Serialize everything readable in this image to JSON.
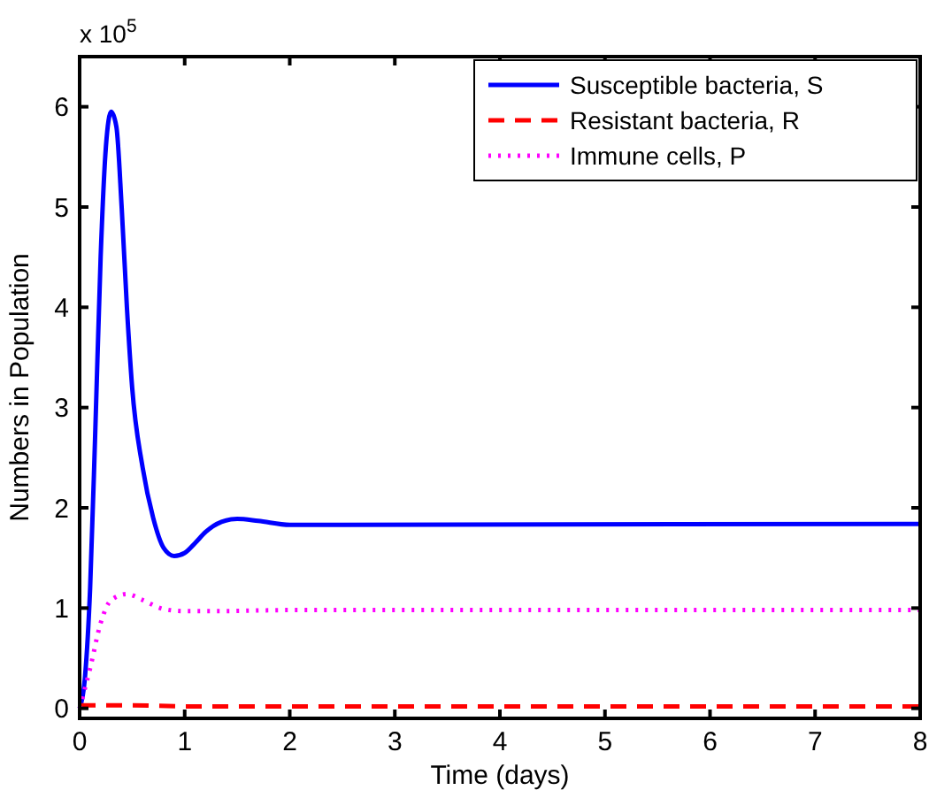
{
  "chart_data": {
    "type": "line",
    "xlabel": "Time (days)",
    "ylabel": "Numbers in Population",
    "annotations": [
      "x 10$^{5}$"
    ],
    "xlim": [
      0,
      8
    ],
    "xticks": [
      0,
      1,
      2,
      3,
      4,
      5,
      6,
      7,
      8
    ],
    "ylim": [
      -0.1,
      6.5
    ],
    "yticks": [
      0,
      1,
      2,
      3,
      4,
      5,
      6
    ],
    "grid": false,
    "legend": "top right",
    "series": [
      {
        "name": "Susceptible bacteria, S",
        "color": "#0000ff",
        "line_style": "solid",
        "x": [
          0,
          0.05,
          0.1,
          0.15,
          0.2,
          0.25,
          0.3,
          0.35,
          0.4,
          0.45,
          0.5,
          0.6,
          0.7,
          0.8,
          0.9,
          1.0,
          1.1,
          1.2,
          1.35,
          1.5,
          1.7,
          2.0,
          2.5,
          8
        ],
        "values": [
          0,
          0.3,
          1.2,
          2.8,
          4.5,
          5.6,
          5.95,
          5.8,
          5.0,
          4.0,
          3.2,
          2.4,
          1.9,
          1.6,
          1.52,
          1.55,
          1.65,
          1.76,
          1.86,
          1.89,
          1.87,
          1.83,
          1.83,
          1.84
        ]
      },
      {
        "name": "Resistant bacteria, R",
        "color": "#ff0000",
        "line_style": "dashed",
        "x": [
          0,
          0.5,
          1,
          8
        ],
        "values": [
          0.03,
          0.03,
          0.02,
          0.02
        ]
      },
      {
        "name": "Immune cells, P",
        "color": "#ff00ff",
        "line_style": "dotted",
        "x": [
          0,
          0.1,
          0.2,
          0.3,
          0.45,
          0.6,
          0.8,
          1.0,
          1.3,
          2,
          8
        ],
        "values": [
          0,
          0.4,
          0.85,
          1.08,
          1.14,
          1.08,
          0.99,
          0.97,
          0.97,
          0.98,
          0.98
        ]
      }
    ]
  }
}
